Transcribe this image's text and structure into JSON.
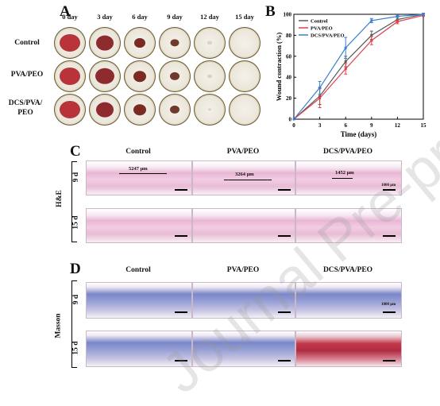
{
  "panelA": {
    "letter": "A",
    "days": [
      "0 day",
      "3 day",
      "6 day",
      "9 day",
      "12 day",
      "15 day"
    ],
    "groups": [
      "Control",
      "PVA/PEO",
      "DCS/PVA/ PEO"
    ]
  },
  "panelB": {
    "letter": "B"
  },
  "panelC": {
    "letter": "C",
    "titles": [
      "Control",
      "PVA/PEO",
      "DCS/PVA/PEO"
    ],
    "stain": "H&E",
    "rows": [
      "9 d",
      "15 d"
    ],
    "measurements": [
      "5247 μm",
      "3264 μm",
      "1452 μm"
    ],
    "scale_text": "1000 μm"
  },
  "panelD": {
    "letter": "D",
    "titles": [
      "Control",
      "PVA/PEO",
      "DCS/PVA/PEO"
    ],
    "stain": "Masson",
    "rows": [
      "9 d",
      "15 d"
    ],
    "scale_text": "1000 μm"
  },
  "watermark": "Journal Pre-proof",
  "chart_data": {
    "type": "line",
    "x": [
      0,
      3,
      6,
      9,
      12,
      15
    ],
    "series": [
      {
        "name": "Control",
        "color": "#5a5a5a",
        "values": [
          0,
          22,
          55,
          80,
          95,
          100
        ],
        "err": [
          0,
          8,
          5,
          4,
          2,
          1
        ]
      },
      {
        "name": "PVA/PEO",
        "color": "#e0404a",
        "values": [
          0,
          20,
          48,
          75,
          93,
          99
        ],
        "err": [
          0,
          9,
          5,
          4,
          2,
          1
        ]
      },
      {
        "name": "DCS/PVA/PEO",
        "color": "#3a7fcf",
        "values": [
          0,
          30,
          68,
          94,
          98,
          100
        ],
        "err": [
          0,
          6,
          10,
          2,
          1,
          1
        ]
      }
    ],
    "xlabel": "Time (days)",
    "ylabel": "Wound contraction (%)",
    "xlim": [
      0,
      15
    ],
    "ylim": [
      0,
      100
    ],
    "xticks": [
      0,
      3,
      6,
      9,
      12,
      15
    ],
    "yticks": [
      0,
      20,
      40,
      60,
      80,
      100
    ],
    "legend_position": "top-left"
  }
}
